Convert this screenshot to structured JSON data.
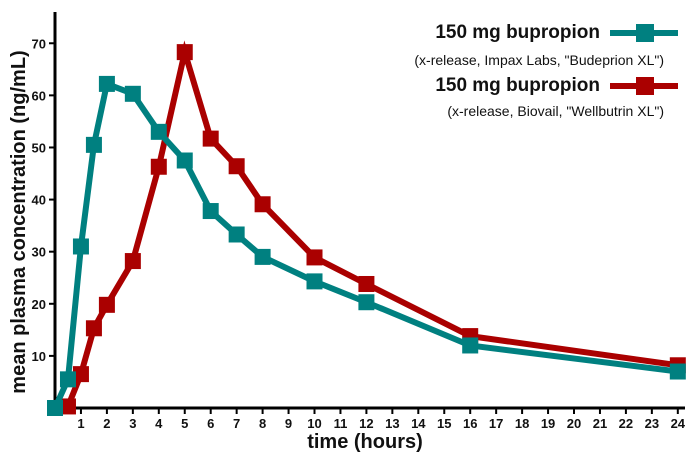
{
  "chart_data": {
    "type": "line",
    "title": "",
    "xlabel": "time (hours)",
    "ylabel": "mean plasma concentration (ng/mL)",
    "xlim": [
      0,
      24.2
    ],
    "ylim": [
      0,
      76
    ],
    "x_ticks": [
      1,
      2,
      3,
      4,
      5,
      6,
      7,
      8,
      9,
      10,
      11,
      12,
      13,
      14,
      15,
      16,
      17,
      18,
      19,
      20,
      21,
      22,
      23,
      24
    ],
    "y_ticks": [
      10,
      20,
      30,
      40,
      50,
      60,
      70
    ],
    "grid": false,
    "legend_position": "top-right",
    "series": [
      {
        "name": "150 mg bupropion",
        "detail": "(x-release, Impax Labs, \"Budeprion XL\")",
        "color": "#008080",
        "points": [
          [
            0,
            0
          ],
          [
            0.5,
            5.5
          ],
          [
            1,
            31
          ],
          [
            1.5,
            50.5
          ],
          [
            2,
            62.2
          ],
          [
            3,
            60.3
          ],
          [
            4,
            53
          ],
          [
            5,
            47.5
          ],
          [
            6,
            37.8
          ],
          [
            7,
            33.3
          ],
          [
            8,
            29
          ],
          [
            10,
            24.3
          ],
          [
            12,
            20.3
          ],
          [
            16,
            12
          ],
          [
            24,
            7
          ]
        ]
      },
      {
        "name": "150 mg bupropion",
        "detail": "(x-release, Biovail, \"Wellbutrin XL\")",
        "color": "#aa0000",
        "points": [
          [
            0,
            0
          ],
          [
            0.5,
            0.3
          ],
          [
            1,
            6.5
          ],
          [
            1.5,
            15.3
          ],
          [
            2,
            19.8
          ],
          [
            3,
            28.2
          ],
          [
            4,
            46.3
          ],
          [
            5,
            68.3
          ],
          [
            6,
            51.7
          ],
          [
            7,
            46.4
          ],
          [
            8,
            39.1
          ],
          [
            10,
            28.9
          ],
          [
            12,
            23.8
          ],
          [
            16,
            13.8
          ],
          [
            24,
            8.2
          ]
        ]
      }
    ]
  }
}
